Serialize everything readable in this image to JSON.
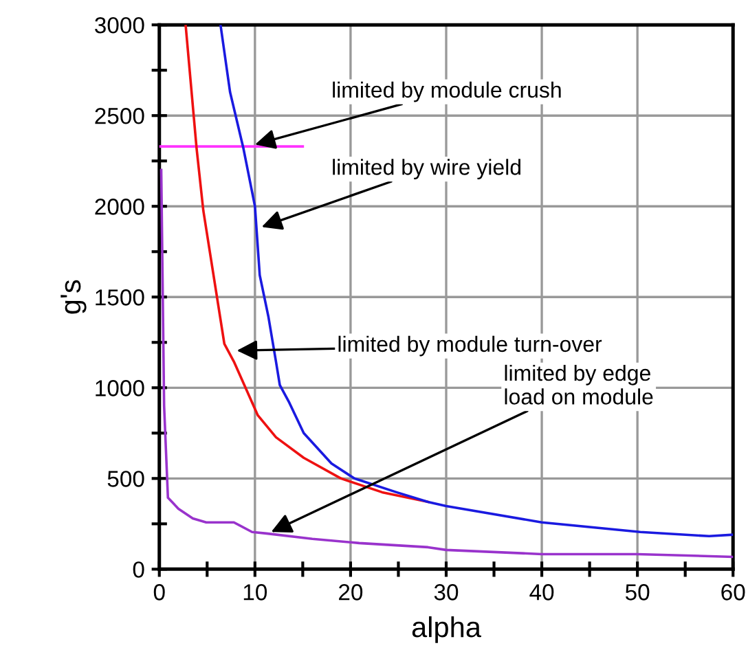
{
  "chart_data": {
    "type": "line",
    "xlabel": "alpha",
    "ylabel": "g's",
    "xlim": [
      0,
      60
    ],
    "ylim": [
      0,
      3000
    ],
    "xticks": [
      0,
      {
        "value": 5,
        "label": null
      },
      10,
      {
        "value": 15,
        "label": null
      },
      20,
      {
        "value": 25,
        "label": null
      },
      30,
      {
        "value": 35,
        "label": null
      },
      40,
      {
        "value": 45,
        "label": null
      },
      50,
      {
        "value": 55,
        "label": null
      },
      60
    ],
    "yticks": [
      0,
      {
        "value": 250,
        "label": null
      },
      500,
      {
        "value": 750,
        "label": null
      },
      1000,
      {
        "value": 1250,
        "label": null
      },
      1500,
      {
        "value": 1750,
        "label": null
      },
      2000,
      {
        "value": 2250,
        "label": null
      },
      2500,
      {
        "value": 2750,
        "label": null
      },
      3000
    ],
    "grid": true,
    "legend": false,
    "marker": "none",
    "line_style": "solid",
    "series": [
      {
        "color": "#ff33ff",
        "x": [
          0,
          15
        ],
        "values": [
          2330,
          2330
        ]
      },
      {
        "color": "#ee1111",
        "x": [
          2.75,
          3.9,
          4.6,
          6.8,
          7.8,
          10.3,
          12.2,
          15.1,
          19,
          23.3,
          28.1
        ],
        "values": [
          3000,
          2318,
          1977,
          1242,
          1144,
          848,
          727,
          614,
          500,
          424,
          371
        ]
      },
      {
        "color": "#1a1ae0",
        "x": [
          6.4,
          7.4,
          8.8,
          10,
          10.5,
          11.4,
          12.2,
          12.6,
          13.6,
          15.1,
          18,
          20.4,
          24.8,
          28.1,
          30,
          40,
          50.3,
          57.5,
          60
        ],
        "values": [
          3000,
          2629,
          2318,
          2000,
          1621,
          1394,
          1144,
          1015,
          917,
          750,
          583,
          500,
          424,
          371,
          348,
          258,
          205,
          182,
          190
        ]
      },
      {
        "color": "#9933cc",
        "x": [
          0.2,
          0.5,
          0.9,
          2,
          3.5,
          4.9,
          7.8,
          9.7,
          11.2,
          16,
          20.9,
          28.1,
          30,
          40,
          50,
          60
        ],
        "values": [
          2200,
          900,
          394,
          333,
          280,
          258,
          258,
          205,
          197,
          167,
          144,
          121,
          106,
          83,
          83,
          68
        ]
      }
    ],
    "annotations": [
      {
        "text": "limited by module crush",
        "x": 10,
        "y": 2340
      },
      {
        "text": "limited by wire yield",
        "x": 10.7,
        "y": 1886
      },
      {
        "text": "limited by module turn-over",
        "x": 8.1,
        "y": 1205
      },
      {
        "text": "limited by edge\nload on module",
        "x": 11.7,
        "y": 205
      }
    ]
  }
}
